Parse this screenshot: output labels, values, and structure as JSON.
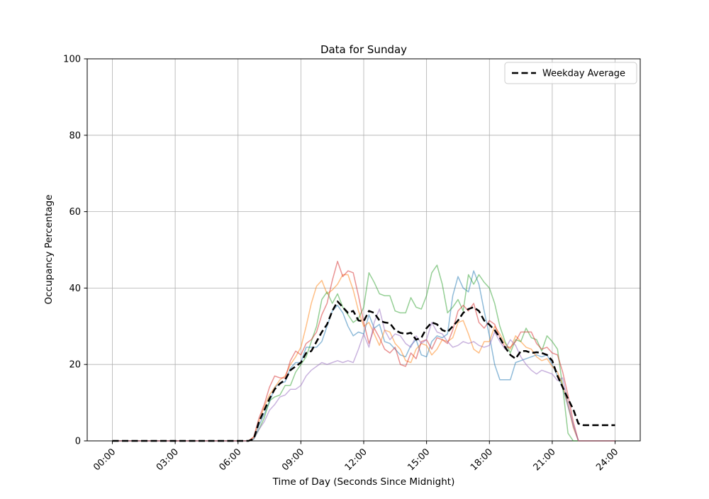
{
  "chart_data": {
    "type": "line",
    "title": "Data for Sunday",
    "xlabel": "Time of Day (Seconds Since Midnight)",
    "ylabel": "Occupancy Percentage",
    "grid": true,
    "grid_color": "#b0b0b0",
    "background_color": "#ffffff",
    "ylim": [
      0,
      100
    ],
    "xlim_hours": [
      -1.2,
      25.2
    ],
    "y_ticks": [
      0,
      20,
      40,
      60,
      80,
      100
    ],
    "x_ticks_hours": [
      0,
      3,
      6,
      9,
      12,
      15,
      18,
      21,
      24
    ],
    "x_tick_labels": [
      "00:00",
      "03:00",
      "06:00",
      "09:00",
      "12:00",
      "15:00",
      "18:00",
      "21:00",
      "24:00"
    ],
    "x_tick_rotation_deg": 45,
    "legend": {
      "position": "upper right",
      "entries": [
        "Weekday Average"
      ]
    },
    "x_start_hours": 0,
    "x_step_hours": 0.25,
    "series": [
      {
        "id": "line-1",
        "color": "#1f77b4",
        "opacity": 0.5,
        "width": 1.5,
        "dash": false,
        "values": [
          0,
          0,
          0,
          0,
          0,
          0,
          0,
          0,
          0,
          0,
          0,
          0,
          0,
          0,
          0,
          0,
          0,
          0,
          0,
          0,
          0,
          0,
          0,
          0,
          0,
          0,
          0,
          0.5,
          4,
          7,
          10,
          14,
          15,
          15.5,
          19,
          20.5,
          20.5,
          24.5,
          24.5,
          24.5,
          26,
          30,
          34,
          35.5,
          33.5,
          30,
          27.5,
          28.5,
          28,
          33,
          29.5,
          30.5,
          26,
          25.5,
          24,
          22.5,
          22,
          25,
          26.5,
          22.5,
          22,
          26,
          27.5,
          27,
          28,
          38,
          43,
          40,
          39,
          44.5,
          41,
          34,
          27.5,
          20,
          16,
          16,
          16,
          20.5,
          21,
          21.5,
          22,
          22.5,
          22,
          22.5,
          20,
          17,
          14,
          9,
          4,
          0,
          0,
          0,
          0,
          0,
          0,
          0,
          0
        ]
      },
      {
        "id": "line-2",
        "color": "#ff7f0e",
        "opacity": 0.5,
        "width": 1.5,
        "dash": false,
        "values": [
          0,
          0,
          0,
          0,
          0,
          0,
          0,
          0,
          0,
          0,
          0,
          0,
          0,
          0,
          0,
          0,
          0,
          0,
          0,
          0,
          0,
          0,
          0,
          0,
          0,
          0,
          0,
          1,
          5,
          9,
          12,
          14,
          16,
          17,
          20,
          22,
          24.5,
          30,
          36,
          40.5,
          42,
          38.5,
          39.5,
          41,
          43.5,
          43.5,
          39.5,
          34,
          30,
          31,
          28,
          25,
          29,
          28.5,
          25.5,
          24,
          21,
          20.5,
          24,
          25.5,
          25,
          22.5,
          24,
          26.5,
          26,
          27,
          31,
          31.5,
          28,
          24,
          23,
          26,
          26,
          30,
          28,
          25.5,
          24,
          27.5,
          26,
          24.5,
          24,
          22,
          21,
          21.5,
          19.5,
          18,
          14.5,
          9.5,
          3.5,
          0,
          0,
          0,
          0,
          0,
          0,
          0,
          0
        ]
      },
      {
        "id": "line-3",
        "color": "#2ca02c",
        "opacity": 0.5,
        "width": 1.5,
        "dash": false,
        "values": [
          0,
          0,
          0,
          0,
          0,
          0,
          0,
          0,
          0,
          0,
          0,
          0,
          0,
          0,
          0,
          0,
          0,
          0,
          0,
          0,
          0,
          0,
          0,
          0,
          0,
          0,
          0,
          0.5,
          3,
          6,
          10.5,
          11.5,
          12,
          14.5,
          14.5,
          18,
          20,
          22,
          26,
          30,
          37,
          39,
          36,
          38.5,
          35,
          33,
          31,
          32,
          35,
          44,
          41.5,
          38.5,
          38,
          38,
          34,
          33.5,
          33.5,
          37.5,
          35,
          34.5,
          38,
          44,
          46,
          41,
          33.5,
          35,
          37,
          34,
          43.5,
          41,
          43.5,
          41.5,
          40,
          36,
          30,
          26,
          23,
          26.5,
          26,
          29.5,
          27,
          26.5,
          23.5,
          27.5,
          26,
          24,
          14,
          2,
          0,
          0,
          0,
          0,
          0,
          0,
          0,
          0,
          0
        ]
      },
      {
        "id": "line-4",
        "color": "#d62728",
        "opacity": 0.5,
        "width": 1.5,
        "dash": false,
        "values": [
          0,
          0,
          0,
          0,
          0,
          0,
          0,
          0,
          0,
          0,
          0,
          0,
          0,
          0,
          0,
          0,
          0,
          0,
          0,
          0,
          0,
          0,
          0,
          0,
          0,
          0,
          0,
          1,
          6,
          9.5,
          14,
          17,
          16.5,
          16.5,
          21,
          23.5,
          22.5,
          25.5,
          26.5,
          28.5,
          33,
          36,
          42,
          47,
          43,
          44.5,
          44,
          38,
          31,
          25.5,
          29.5,
          27,
          24,
          23,
          24.5,
          20,
          19.5,
          23,
          21.5,
          26,
          26.5,
          24,
          27,
          26.5,
          25.5,
          29,
          34,
          35.5,
          34,
          36,
          31,
          29.5,
          31.5,
          30.5,
          27,
          24.5,
          24.5,
          26,
          28.5,
          28.5,
          28.5,
          25.5,
          24,
          24.5,
          23,
          22.5,
          18,
          12,
          5,
          0,
          0,
          0,
          0,
          0,
          0,
          0,
          0
        ]
      },
      {
        "id": "line-5",
        "color": "#9467bd",
        "opacity": 0.5,
        "width": 1.5,
        "dash": false,
        "values": [
          0,
          0,
          0,
          0,
          0,
          0,
          0,
          0,
          0,
          0,
          0,
          0,
          0,
          0,
          0,
          0,
          0,
          0,
          0,
          0,
          0,
          0,
          0,
          0,
          0,
          0,
          0,
          0.5,
          3,
          5,
          8,
          9.5,
          11.5,
          12,
          13.5,
          13.5,
          14.5,
          17,
          18.5,
          19.5,
          20.5,
          20,
          20.5,
          21,
          20.5,
          21,
          20.5,
          24,
          28,
          24.5,
          31,
          34.5,
          29,
          26.5,
          28,
          27.5,
          25.5,
          24.5,
          27.5,
          25.5,
          26.5,
          31,
          28.5,
          28,
          26,
          24.5,
          25,
          26,
          25.5,
          26,
          25,
          24.5,
          25,
          28.5,
          26,
          24,
          26.5,
          25,
          22,
          20,
          18.5,
          17.5,
          18.5,
          18,
          17.5,
          15.8,
          16.5,
          10,
          4,
          0,
          0,
          0,
          0,
          0,
          0,
          0,
          0
        ]
      },
      {
        "id": "weekday-average",
        "name": "Weekday Average",
        "color": "#000000",
        "opacity": 1,
        "width": 2.5,
        "dash": true,
        "values": [
          0,
          0,
          0,
          0,
          0,
          0,
          0,
          0,
          0,
          0,
          0,
          0,
          0,
          0,
          0,
          0,
          0,
          0,
          0,
          0,
          0,
          0,
          0,
          0,
          0,
          0,
          0,
          0.5,
          5,
          8,
          11,
          13.5,
          15,
          16,
          18.5,
          19.5,
          20.5,
          23,
          23.5,
          26,
          28.5,
          30.5,
          34,
          36.5,
          35,
          33.5,
          34,
          31.5,
          31.3,
          34,
          33.5,
          31.5,
          31,
          30.8,
          29,
          28.3,
          28,
          28.3,
          26.5,
          27,
          29.5,
          31,
          30.5,
          29,
          28.5,
          30,
          31.5,
          33.5,
          34.5,
          35,
          34,
          31.5,
          30.4,
          29,
          27,
          24.5,
          22.5,
          21.5,
          23.5,
          23.5,
          23,
          23.2,
          23,
          22.5,
          21,
          17,
          14,
          11,
          8.3,
          4.5,
          4.1,
          4.1,
          4.1,
          4.1,
          4.1,
          4.1,
          4.1
        ]
      }
    ]
  }
}
